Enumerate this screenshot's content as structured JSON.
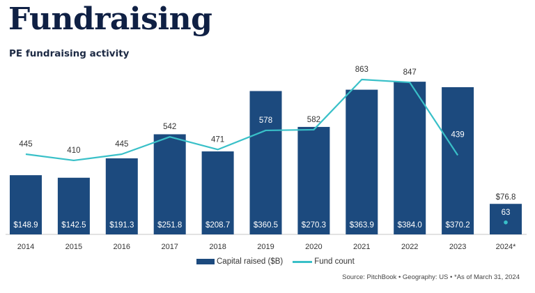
{
  "header": {
    "title": "Fundraising",
    "subtitle": "PE fundraising activity"
  },
  "colors": {
    "bar": "#1c4a7e",
    "line": "#39c0c8",
    "title": "#0f2044"
  },
  "chart_data": {
    "type": "bar",
    "title": "PE fundraising activity",
    "xlabel": "",
    "ylabel": "",
    "categories": [
      "2014",
      "2015",
      "2016",
      "2017",
      "2018",
      "2019",
      "2020",
      "2021",
      "2022",
      "2023",
      "2024*"
    ],
    "series": [
      {
        "name": "Capital raised ($B)",
        "type": "bar",
        "values": [
          148.9,
          142.5,
          191.3,
          251.8,
          208.7,
          360.5,
          270.3,
          363.9,
          384.0,
          370.2,
          76.8
        ],
        "labels": [
          "$148.9",
          "$142.5",
          "$191.3",
          "$251.8",
          "$208.7",
          "$360.5",
          "$270.3",
          "$363.9",
          "$384.0",
          "$370.2",
          "$76.8"
        ]
      },
      {
        "name": "Fund count",
        "type": "line",
        "values": [
          445,
          410,
          445,
          542,
          471,
          578,
          582,
          863,
          847,
          439,
          63
        ],
        "labels": [
          "445",
          "410",
          "445",
          "542",
          "471",
          "578",
          "582",
          "863",
          "847",
          "439",
          "63"
        ]
      }
    ],
    "legend": [
      "Capital raised ($B)",
      "Fund count"
    ],
    "legend_position": "bottom",
    "grid": false,
    "note": "2024* shown as a separate point (not connected to line)"
  },
  "footer": {
    "source": "Source: PitchBook  •  Geography: US  •  *As of March 31, 2024"
  }
}
